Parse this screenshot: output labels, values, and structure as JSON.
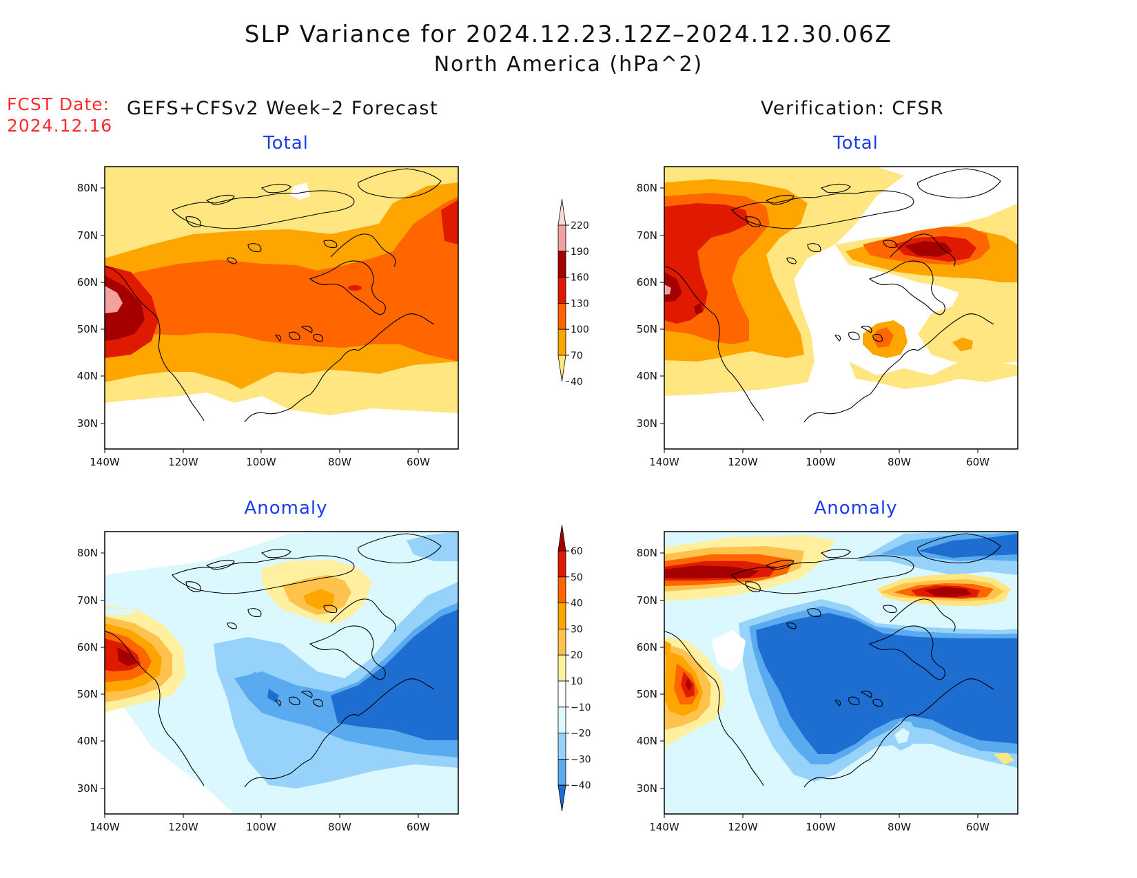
{
  "title": "SLP Variance for 2024.12.23.12Z–2024.12.30.06Z",
  "subtitle": "North America (hPa^2)",
  "forecast_date_label": "FCST Date:",
  "forecast_date": "2024.12.16",
  "columns": {
    "left": "GEFS+CFSv2 Week–2 Forecast",
    "right": "Verification: CFSR"
  },
  "panels": {
    "total_forecast": "Total",
    "total_verification": "Total",
    "anomaly_forecast": "Anomaly",
    "anomaly_verification": "Anomaly"
  },
  "axes": {
    "lat_ticks": [
      "80N",
      "70N",
      "60N",
      "50N",
      "40N",
      "30N"
    ],
    "lon_ticks": [
      "140W",
      "120W",
      "100W",
      "80W",
      "60W"
    ]
  },
  "colorbar_total": {
    "levels": [
      "220",
      "190",
      "160",
      "130",
      "100",
      "70",
      "40"
    ],
    "colors": [
      "#fbdcdc",
      "#f2a1a1",
      "#a50000",
      "#e01a00",
      "#ff6600",
      "#ffa500",
      "#ffe680"
    ]
  },
  "colorbar_anomaly": {
    "levels": [
      "60",
      "50",
      "40",
      "30",
      "20",
      "10",
      "−10",
      "−20",
      "−30",
      "−40"
    ],
    "colors": [
      "#a50000",
      "#e01a00",
      "#ff6600",
      "#ffa500",
      "#ffc34d",
      "#fff0a0",
      "#ffffff",
      "#dcf8ff",
      "#96d2fa",
      "#5aaaf0",
      "#1e6ed2"
    ]
  }
}
